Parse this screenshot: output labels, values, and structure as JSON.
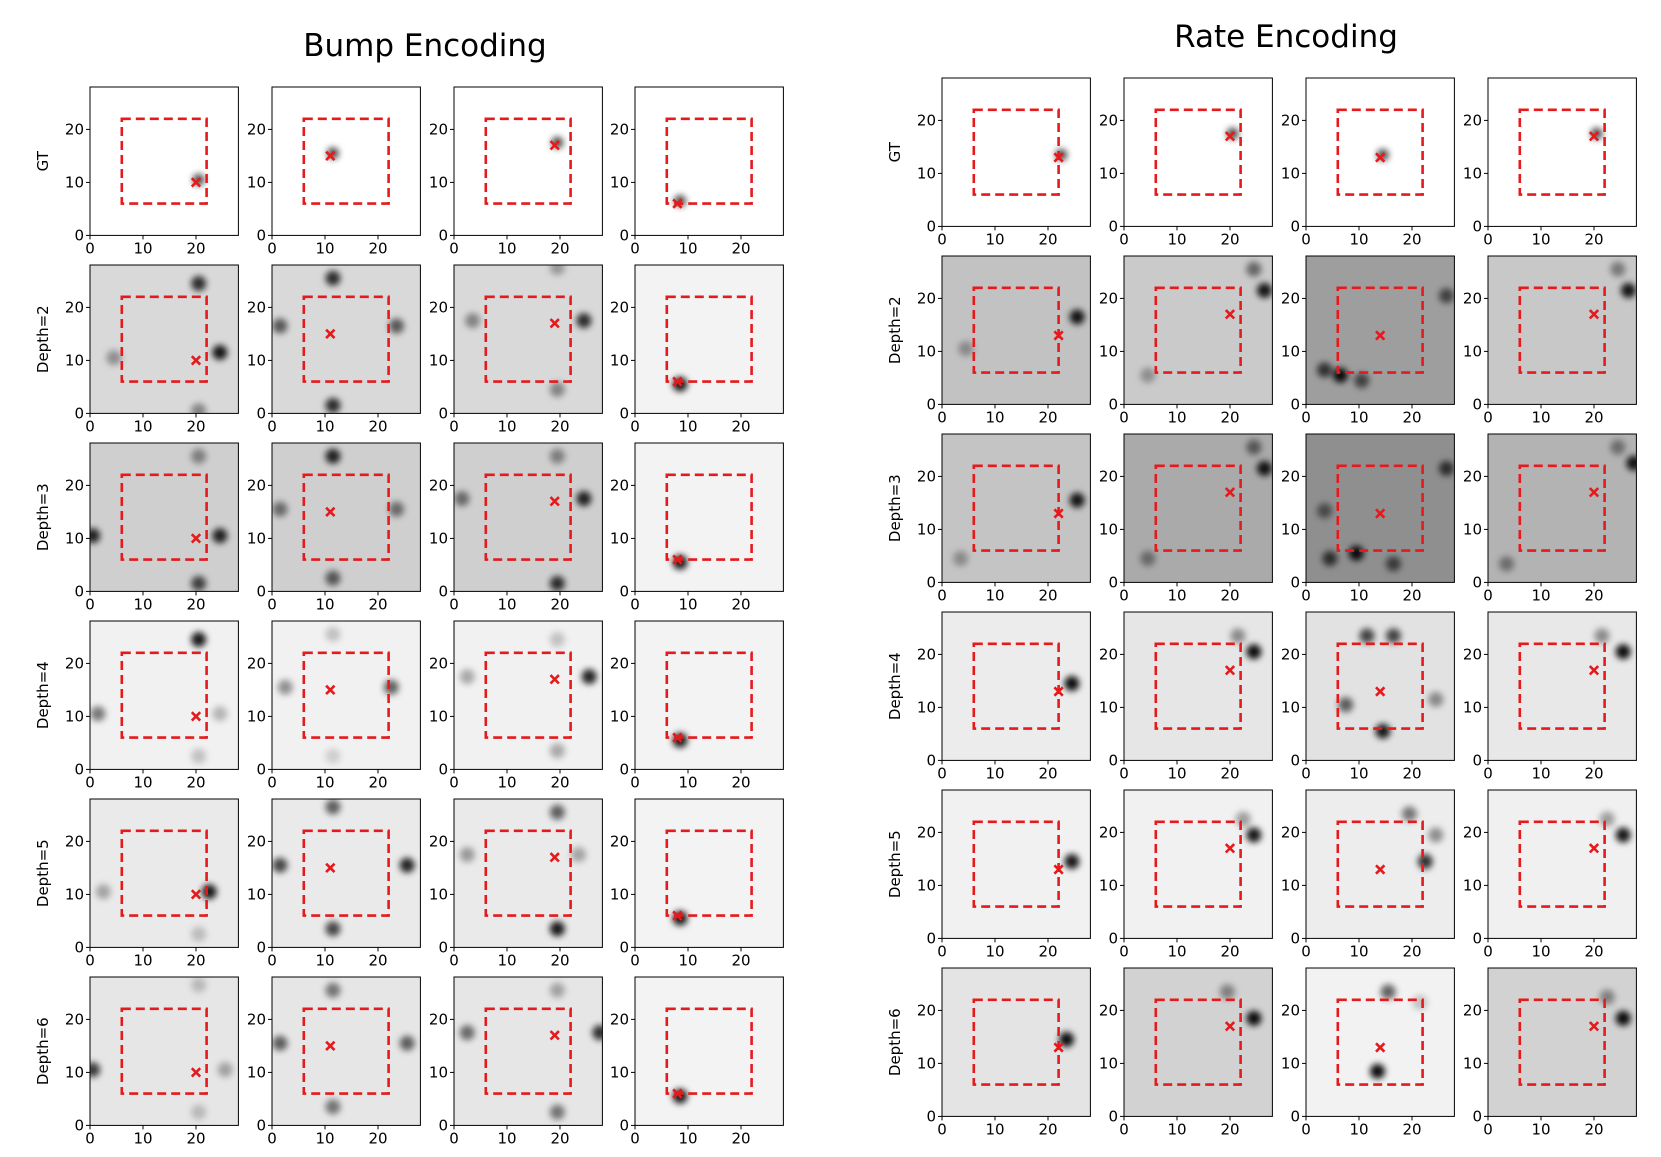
{
  "chart_data": [
    {
      "type": "heatmap",
      "title": "Bump Encoding",
      "row_labels": [
        "GT",
        "Depth=2",
        "Depth=3",
        "Depth=4",
        "Depth=5",
        "Depth=6"
      ],
      "x_ticks": [
        "0",
        "10",
        "20"
      ],
      "y_ticks": [
        "0",
        "10",
        "20"
      ],
      "xlim": [
        0,
        28
      ],
      "ylim": [
        0,
        28
      ],
      "region_box": [
        6,
        6,
        22,
        22
      ],
      "targets": [
        [
          20,
          10
        ],
        [
          11,
          15
        ],
        [
          19,
          17
        ],
        [
          8,
          6
        ]
      ],
      "peaks": [
        [
          [
            [
              20,
              10,
              0.7
            ]
          ],
          [
            [
              11,
              15,
              0.7
            ]
          ],
          [
            [
              19,
              17,
              0.7
            ]
          ],
          [
            [
              8,
              6,
              0.7
            ]
          ]
        ],
        [
          [
            [
              24,
              11,
              0.9
            ],
            [
              20,
              24,
              0.8
            ],
            [
              4,
              10,
              0.35
            ],
            [
              20,
              0,
              0.4
            ]
          ],
          [
            [
              11,
              25,
              0.8
            ],
            [
              11,
              1,
              0.8
            ],
            [
              1,
              16,
              0.6
            ],
            [
              23,
              16,
              0.6
            ]
          ],
          [
            [
              24,
              17,
              0.8
            ],
            [
              19,
              4,
              0.4
            ],
            [
              3,
              17,
              0.4
            ],
            [
              19,
              27,
              0.3
            ]
          ],
          [
            [
              8,
              5,
              0.9
            ]
          ]
        ],
        [
          [
            [
              0,
              10,
              0.85
            ],
            [
              24,
              10,
              0.85
            ],
            [
              20,
              1,
              0.7
            ],
            [
              20,
              25,
              0.4
            ]
          ],
          [
            [
              11,
              25,
              0.85
            ],
            [
              11,
              2,
              0.6
            ],
            [
              1,
              15,
              0.5
            ],
            [
              23,
              15,
              0.5
            ]
          ],
          [
            [
              24,
              17,
              0.85
            ],
            [
              19,
              1,
              0.8
            ],
            [
              1,
              17,
              0.5
            ],
            [
              19,
              25,
              0.4
            ]
          ],
          [
            [
              8,
              5,
              0.9
            ]
          ]
        ],
        [
          [
            [
              20,
              24,
              0.9
            ],
            [
              1,
              10,
              0.5
            ],
            [
              24,
              10,
              0.25
            ],
            [
              20,
              2,
              0.2
            ]
          ],
          [
            [
              22,
              15,
              0.6
            ],
            [
              2,
              15,
              0.4
            ],
            [
              11,
              25,
              0.2
            ],
            [
              11,
              2,
              0.15
            ]
          ],
          [
            [
              25,
              17,
              0.85
            ],
            [
              2,
              17,
              0.3
            ],
            [
              19,
              3,
              0.3
            ],
            [
              19,
              24,
              0.2
            ]
          ],
          [
            [
              8,
              5,
              0.9
            ]
          ]
        ],
        [
          [
            [
              22,
              10,
              0.9
            ],
            [
              2,
              10,
              0.3
            ],
            [
              20,
              2,
              0.2
            ]
          ],
          [
            [
              1,
              15,
              0.7
            ],
            [
              25,
              15,
              0.85
            ],
            [
              11,
              26,
              0.6
            ],
            [
              11,
              3,
              0.7
            ]
          ],
          [
            [
              19,
              3,
              0.9
            ],
            [
              19,
              25,
              0.6
            ],
            [
              2,
              17,
              0.35
            ],
            [
              23,
              17,
              0.3
            ]
          ],
          [
            [
              8,
              5,
              0.9
            ]
          ]
        ],
        [
          [
            [
              0,
              10,
              0.75
            ],
            [
              25,
              10,
              0.3
            ],
            [
              20,
              26,
              0.2
            ],
            [
              20,
              2,
              0.2
            ]
          ],
          [
            [
              11,
              25,
              0.5
            ],
            [
              11,
              3,
              0.5
            ],
            [
              1,
              15,
              0.6
            ],
            [
              25,
              15,
              0.6
            ]
          ],
          [
            [
              27,
              17,
              0.8
            ],
            [
              2,
              17,
              0.55
            ],
            [
              19,
              2,
              0.5
            ],
            [
              19,
              25,
              0.3
            ]
          ],
          [
            [
              8,
              5,
              0.9
            ]
          ]
        ]
      ]
    },
    {
      "type": "heatmap",
      "title": "Rate Encoding",
      "row_labels": [
        "GT",
        "Depth=2",
        "Depth=3",
        "Depth=4",
        "Depth=5",
        "Depth=6"
      ],
      "x_ticks": [
        "0",
        "10",
        "20"
      ],
      "y_ticks": [
        "0",
        "10",
        "20"
      ],
      "xlim": [
        0,
        28
      ],
      "ylim": [
        0,
        28
      ],
      "region_box": [
        6,
        6,
        22,
        22
      ],
      "targets": [
        [
          22,
          13
        ],
        [
          20,
          17
        ],
        [
          14,
          13
        ],
        [
          20,
          17
        ]
      ],
      "peaks": [
        [
          [
            [
              22,
              13,
              0.7
            ]
          ],
          [
            [
              20,
              17,
              0.7
            ]
          ],
          [
            [
              14,
              13,
              0.7
            ]
          ],
          [
            [
              20,
              17,
              0.7
            ]
          ]
        ],
        [
          [
            [
              25,
              16,
              0.9
            ],
            [
              4,
              10,
              0.3
            ]
          ],
          [
            [
              26,
              21,
              0.9
            ],
            [
              24,
              25,
              0.5
            ],
            [
              4,
              5,
              0.3
            ]
          ],
          [
            [
              6,
              5,
              0.95
            ],
            [
              3,
              6,
              0.7
            ],
            [
              10,
              4,
              0.6
            ],
            [
              26,
              20,
              0.6
            ]
          ],
          [
            [
              26,
              21,
              0.9
            ],
            [
              24,
              25,
              0.4
            ]
          ]
        ],
        [
          [
            [
              25,
              15,
              0.9
            ],
            [
              3,
              4,
              0.3
            ]
          ],
          [
            [
              26,
              21,
              0.9
            ],
            [
              24,
              25,
              0.5
            ],
            [
              4,
              4,
              0.4
            ]
          ],
          [
            [
              9,
              5,
              0.95
            ],
            [
              4,
              4,
              0.7
            ],
            [
              16,
              3,
              0.6
            ],
            [
              26,
              21,
              0.7
            ],
            [
              3,
              13,
              0.5
            ]
          ],
          [
            [
              27,
              22,
              0.9
            ],
            [
              24,
              25,
              0.4
            ],
            [
              3,
              3,
              0.4
            ]
          ]
        ],
        [
          [
            [
              24,
              14,
              0.95
            ]
          ],
          [
            [
              24,
              20,
              0.95
            ],
            [
              21,
              23,
              0.4
            ]
          ],
          [
            [
              14,
              5,
              0.9
            ],
            [
              7,
              10,
              0.6
            ],
            [
              11,
              23,
              0.7
            ],
            [
              16,
              23,
              0.7
            ],
            [
              24,
              11,
              0.4
            ]
          ],
          [
            [
              25,
              20,
              0.95
            ],
            [
              21,
              23,
              0.4
            ]
          ]
        ],
        [
          [
            [
              24,
              14,
              0.9
            ]
          ],
          [
            [
              24,
              19,
              0.9
            ],
            [
              22,
              22,
              0.35
            ]
          ],
          [
            [
              22,
              14,
              0.8
            ],
            [
              19,
              23,
              0.5
            ],
            [
              24,
              19,
              0.4
            ]
          ],
          [
            [
              25,
              19,
              0.9
            ],
            [
              22,
              22,
              0.35
            ]
          ]
        ],
        [
          [
            [
              23,
              14,
              0.95
            ]
          ],
          [
            [
              24,
              18,
              0.95
            ],
            [
              19,
              23,
              0.4
            ]
          ],
          [
            [
              13,
              8,
              0.95
            ],
            [
              15,
              23,
              0.6
            ],
            [
              21,
              21,
              0.2
            ]
          ],
          [
            [
              25,
              18,
              0.95
            ],
            [
              22,
              22,
              0.4
            ]
          ]
        ]
      ]
    }
  ]
}
